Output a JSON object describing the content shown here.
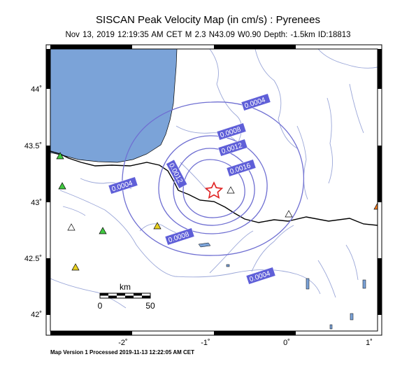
{
  "header": {
    "title": "SISCAN Peak Velocity Map (in cm/s) : Pyrenees",
    "subtitle": "Nov 13, 2019 12:19:35 AM CET   M 2.3   N43.09 W0.90   Depth: -1.5km   ID:18813"
  },
  "map": {
    "x_ticks": [
      "-2˚",
      "-1˚",
      "0˚",
      "1˚"
    ],
    "y_ticks": [
      "44˚",
      "43.5˚",
      "43˚",
      "42.5˚",
      "42˚"
    ],
    "colors": {
      "sea": "#7ba3d8",
      "contour": "#6f6fd2",
      "contour_label_bg": "#5f5fd8",
      "river": "#9aa6d8",
      "border": "#000000",
      "epicenter": "#e02020"
    },
    "epicenter_icon": "star-icon"
  },
  "contours": {
    "labels": [
      "0.0004",
      "0.0008",
      "0.0012",
      "0.0016",
      "0.0012",
      "0.0004",
      "0.0008",
      "0.0004"
    ]
  },
  "stations": {
    "colors": [
      "#40c840",
      "#40c840",
      "#40c840",
      "#ffffff",
      "#e8d020",
      "#e8d020",
      "#ffffff",
      "#ffffff",
      "#ff8020"
    ]
  },
  "scale_bar": {
    "unit": "km",
    "start": "0",
    "end": "50"
  },
  "footer": {
    "text": "Map Version 1 Processed 2019-11-13 12:22:05 AM CET"
  }
}
